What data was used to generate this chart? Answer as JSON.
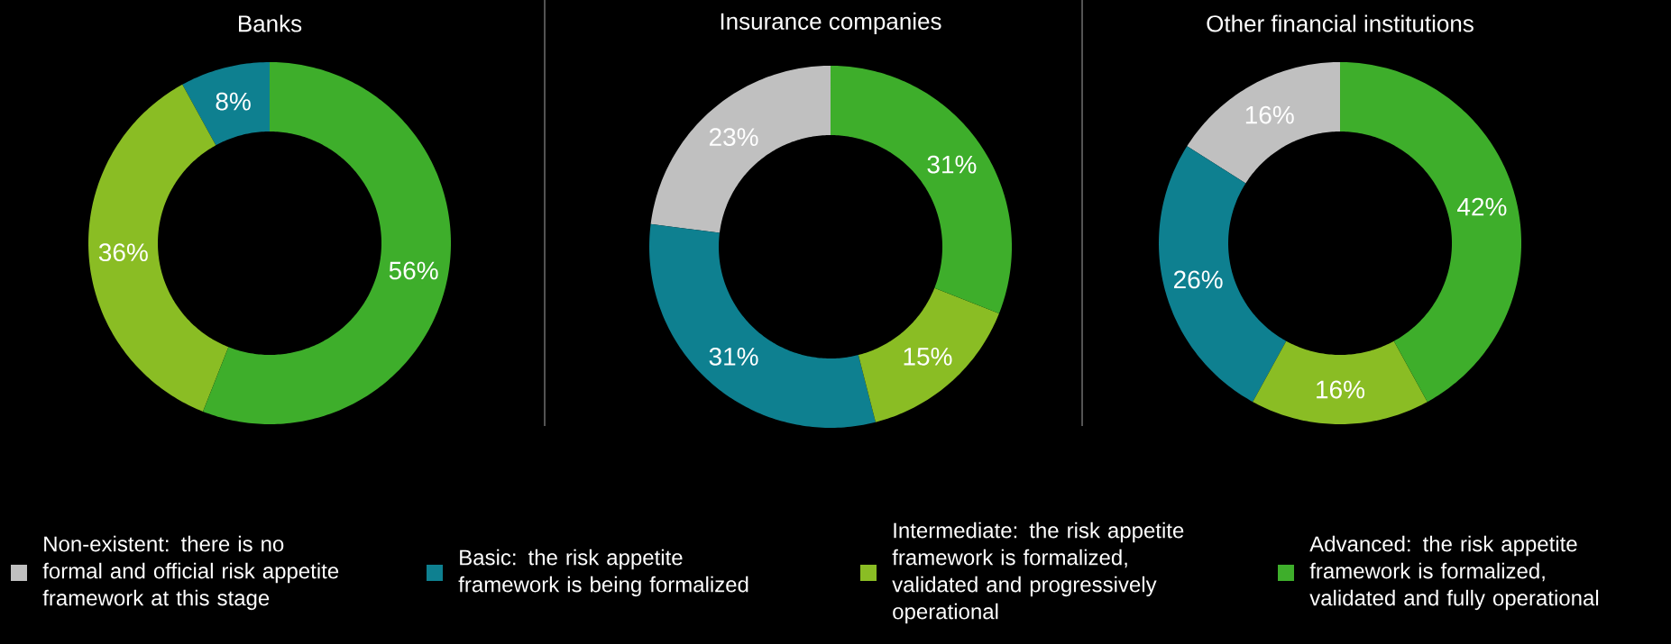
{
  "chart_data": [
    {
      "type": "donut",
      "title": "Banks",
      "legend": "bottom",
      "categories": [
        "Non-existent: there is no formal and official risk appetite framework at this stage",
        "Basic: the risk appetite framework is being formalized",
        "Intermediate: the risk appetite framework is formalized, validated and progressively operational",
        "Advanced: the risk appetite framework is formalized, validated and fully operational"
      ],
      "values": [
        null,
        8,
        36,
        56
      ],
      "value_labels": [
        null,
        "8%",
        "36%",
        "56%"
      ],
      "colors": [
        "#c0c0c0",
        "#0e8090",
        "#8abd24",
        "#3eae2b"
      ]
    },
    {
      "type": "donut",
      "title": "Insurance companies",
      "categories": [
        null,
        null,
        null,
        null
      ],
      "values": [
        23,
        31,
        15,
        31
      ],
      "value_labels": [
        "23%",
        "31%",
        "15%",
        "31%"
      ],
      "colors": [
        "#c0c0c0",
        "#0e8090",
        "#8abd24",
        "#3eae2b"
      ]
    },
    {
      "type": "donut",
      "title": "Other financial institutions",
      "categories": [
        null,
        null,
        null,
        null
      ],
      "values": [
        16,
        26,
        16,
        42
      ],
      "value_labels": [
        "16%",
        "26%",
        "16%",
        "42%"
      ],
      "colors": [
        "#c0c0c0",
        "#0e8090",
        "#8abd24",
        "#3eae2b"
      ]
    }
  ]
}
